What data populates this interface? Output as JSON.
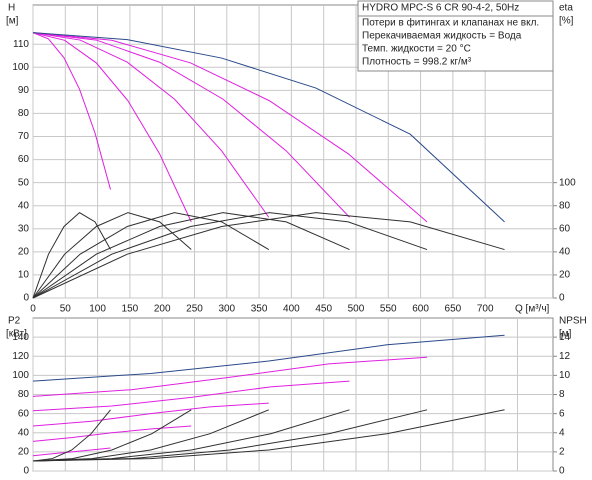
{
  "chart_data": [
    {
      "type": "line",
      "y_label": "H",
      "y_unit": "[м]",
      "y2_label": "eta",
      "y2_unit": "[%]",
      "x_label": "Q [м³/ч]",
      "annotations": [
        "HYDRO MPC-S 6 CR 90-4-2, 50Hz",
        "Потери в фитингах и клапанах не вкл.",
        "Перекачиваемая жидкость = Вода",
        "Темп. жидкости = 20 °C",
        "Плотность = 998.2 кг/м³"
      ],
      "xlim": [
        0,
        805
      ],
      "xticks": [
        0,
        50,
        100,
        150,
        200,
        250,
        300,
        350,
        400,
        450,
        500,
        550,
        600,
        650,
        700
      ],
      "x_tick_labels": true,
      "ylim": [
        0,
        127
      ],
      "yticks": [
        0,
        10,
        20,
        30,
        40,
        50,
        60,
        70,
        80,
        90,
        100,
        110
      ],
      "y2lim": [
        0,
        254
      ],
      "y2ticks": [
        0,
        20,
        40,
        60,
        80,
        100
      ],
      "grid": true,
      "series": [
        {
          "color": "#e020e0",
          "x": [
            0,
            24,
            48,
            72,
            96,
            120
          ],
          "values": [
            115,
            112.3,
            104.1,
            90.5,
            71.5,
            47
          ]
        },
        {
          "color": "#e020e0",
          "x": [
            0,
            49,
            98,
            147,
            196,
            245
          ],
          "values": [
            115,
            111.7,
            101.9,
            85.5,
            62.5,
            33
          ]
        },
        {
          "color": "#e020e0",
          "x": [
            0,
            73,
            146,
            219,
            292,
            365
          ],
          "values": [
            115,
            111.8,
            102.2,
            86.2,
            63.8,
            35
          ]
        },
        {
          "color": "#e020e0",
          "x": [
            0,
            98,
            196,
            294,
            392,
            490
          ],
          "values": [
            115,
            111.8,
            102.2,
            86.2,
            63.8,
            35
          ]
        },
        {
          "color": "#e020e0",
          "x": [
            0,
            122,
            244,
            366,
            488,
            610
          ],
          "values": [
            115,
            111.7,
            101.9,
            85.5,
            62.5,
            33
          ]
        },
        {
          "color": "#2a4a8a",
          "x": [
            0,
            146,
            292,
            438,
            584,
            730
          ],
          "values": [
            115,
            112,
            104,
            91,
            71,
            33
          ]
        },
        {
          "color": "#303030",
          "axis": "y2",
          "x": [
            0,
            24,
            48,
            72,
            96,
            120
          ],
          "values": [
            0,
            38,
            62,
            74,
            66,
            42
          ]
        },
        {
          "color": "#303030",
          "axis": "y2",
          "x": [
            0,
            49,
            98,
            147,
            196,
            245
          ],
          "values": [
            0,
            38,
            62,
            74,
            66,
            42
          ]
        },
        {
          "color": "#303030",
          "axis": "y2",
          "x": [
            0,
            73,
            146,
            219,
            292,
            365
          ],
          "values": [
            0,
            38,
            62,
            74,
            66,
            42
          ]
        },
        {
          "color": "#303030",
          "axis": "y2",
          "x": [
            0,
            98,
            196,
            294,
            392,
            490
          ],
          "values": [
            0,
            38,
            62,
            74,
            66,
            42
          ]
        },
        {
          "color": "#303030",
          "axis": "y2",
          "x": [
            0,
            122,
            244,
            366,
            488,
            610
          ],
          "values": [
            0,
            38,
            62,
            74,
            66,
            42
          ]
        },
        {
          "color": "#303030",
          "axis": "y2",
          "x": [
            0,
            146,
            292,
            438,
            584,
            730
          ],
          "values": [
            0,
            38,
            62,
            74,
            66,
            42
          ]
        }
      ]
    },
    {
      "type": "line",
      "y_label": "P2",
      "y_unit": "[кВт]",
      "y2_label": "NPSH",
      "y2_unit": "[м]",
      "xlim": [
        0,
        805
      ],
      "xticks": [
        0,
        50,
        100,
        150,
        200,
        250,
        300,
        350,
        400,
        450,
        500,
        550,
        600,
        650,
        700,
        750
      ],
      "x_tick_labels": false,
      "ylim": [
        0,
        160
      ],
      "yticks": [
        0,
        20,
        40,
        60,
        80,
        100,
        120,
        140
      ],
      "y2lim": [
        0,
        16
      ],
      "y2ticks": [
        0,
        2,
        4,
        6,
        8,
        10,
        12,
        14
      ],
      "grid": true,
      "series": [
        {
          "color": "#e020e0",
          "x": [
            0,
            30,
            60,
            90,
            120
          ],
          "values": [
            16,
            18,
            20,
            22,
            24
          ]
        },
        {
          "color": "#e020e0",
          "x": [
            0,
            61,
            122,
            184,
            245
          ],
          "values": [
            31,
            35,
            40,
            44,
            47
          ]
        },
        {
          "color": "#e020e0",
          "x": [
            0,
            91,
            182,
            274,
            365
          ],
          "values": [
            47,
            52,
            60,
            67,
            71
          ]
        },
        {
          "color": "#e020e0",
          "x": [
            0,
            122,
            245,
            368,
            490
          ],
          "values": [
            63,
            68,
            77,
            88,
            94
          ]
        },
        {
          "color": "#e020e0",
          "x": [
            0,
            152,
            305,
            458,
            610
          ],
          "values": [
            78,
            85,
            98,
            112,
            119
          ]
        },
        {
          "color": "#2a4a8a",
          "x": [
            0,
            182,
            365,
            548,
            730
          ],
          "values": [
            94,
            102,
            115,
            132,
            142
          ]
        },
        {
          "color": "#303030",
          "axis": "y2",
          "x": [
            0,
            30,
            60,
            90,
            120
          ],
          "values": [
            1.05,
            1.3,
            2.2,
            3.9,
            6.4
          ]
        },
        {
          "color": "#303030",
          "axis": "y2",
          "x": [
            0,
            61,
            122,
            184,
            245
          ],
          "values": [
            1.05,
            1.3,
            2.2,
            3.9,
            6.4
          ]
        },
        {
          "color": "#303030",
          "axis": "y2",
          "x": [
            0,
            91,
            182,
            274,
            365
          ],
          "values": [
            1.05,
            1.3,
            2.2,
            3.9,
            6.4
          ]
        },
        {
          "color": "#303030",
          "axis": "y2",
          "x": [
            0,
            122,
            245,
            368,
            490
          ],
          "values": [
            1.05,
            1.3,
            2.2,
            3.9,
            6.4
          ]
        },
        {
          "color": "#303030",
          "axis": "y2",
          "x": [
            0,
            152,
            305,
            458,
            610
          ],
          "values": [
            1.05,
            1.3,
            2.2,
            3.9,
            6.4
          ]
        },
        {
          "color": "#303030",
          "axis": "y2",
          "x": [
            0,
            182,
            365,
            548,
            730
          ],
          "values": [
            1.05,
            1.3,
            2.2,
            3.9,
            6.4
          ]
        }
      ]
    }
  ]
}
